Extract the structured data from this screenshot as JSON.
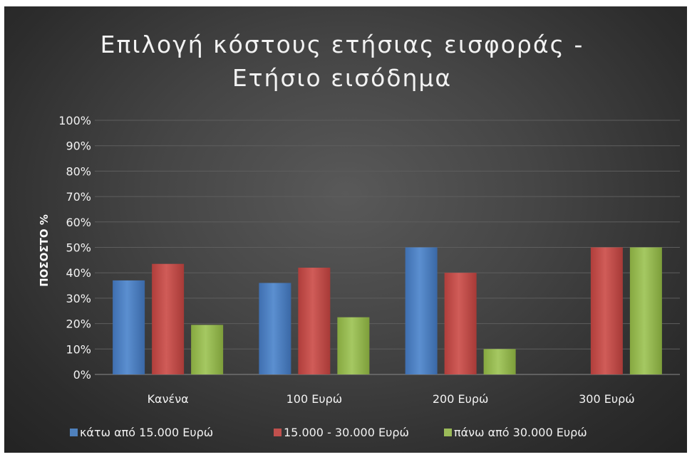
{
  "chart_data": {
    "type": "bar",
    "title_lines": [
      "Επιλογή κόστους ετήσιας εισφοράς -",
      "Ετήσιο εισόδημα"
    ],
    "ylabel": "ΠΟΣΟΣΤΟ %",
    "xlabel": "",
    "categories": [
      "Κανένα",
      "100 Ευρώ",
      "200 Ευρώ",
      "300 Ευρώ"
    ],
    "yticks": [
      "0%",
      "10%",
      "20%",
      "30%",
      "40%",
      "50%",
      "60%",
      "70%",
      "80%",
      "90%",
      "100%"
    ],
    "ylim": [
      0,
      100
    ],
    "grid": true,
    "legend_position": "bottom",
    "series": [
      {
        "name": "κάτω από 15.000 Ευρώ",
        "color": "#4f81bd",
        "values": [
          37,
          36,
          50,
          0
        ]
      },
      {
        "name": "15.000 - 30.000 Ευρώ",
        "color": "#c0504d",
        "values": [
          43.5,
          42,
          40,
          50
        ]
      },
      {
        "name": "πάνω από 30.000 Ευρώ",
        "color": "#9bbb59",
        "values": [
          19.5,
          22.5,
          10,
          50
        ]
      }
    ]
  }
}
